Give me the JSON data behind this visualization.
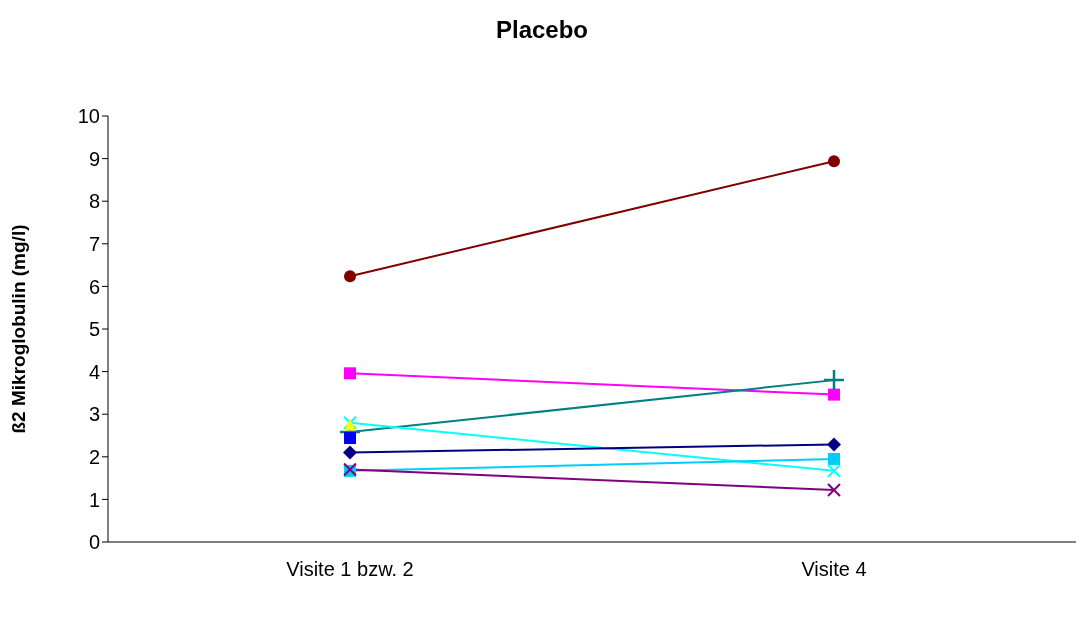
{
  "chart_data": {
    "type": "line",
    "title": "Placebo",
    "ylabel": "ß2 Mikroglobulin (mg/l)",
    "categories": [
      "Visite 1 bzw. 2",
      "Visite 4"
    ],
    "ylim": [
      0,
      10
    ],
    "yticks": [
      0,
      1,
      2,
      3,
      4,
      5,
      6,
      7,
      8,
      9,
      10
    ],
    "grid": false,
    "legend": false,
    "series": [
      {
        "color": "#800000",
        "marker": "circle",
        "values": [
          6.24,
          8.94
        ]
      },
      {
        "color": "#ff00ff",
        "marker": "square",
        "values": [
          3.96,
          3.46
        ]
      },
      {
        "color": "#008080",
        "marker": "plus",
        "values": [
          2.58,
          3.8
        ]
      },
      {
        "color": "#00ffff",
        "marker": "cross",
        "values": [
          2.8,
          1.67
        ]
      },
      {
        "color": "#ffff00",
        "marker": "triangle",
        "values": [
          2.76,
          null
        ]
      },
      {
        "color": "#0000ff",
        "marker": "square",
        "values": [
          2.44,
          null
        ]
      },
      {
        "color": "#000080",
        "marker": "diamond",
        "values": [
          2.1,
          2.29
        ]
      },
      {
        "color": "#00ccff",
        "marker": "square",
        "values": [
          1.67,
          1.95
        ]
      },
      {
        "color": "#800080",
        "marker": "cross",
        "values": [
          1.7,
          1.22
        ]
      }
    ]
  }
}
